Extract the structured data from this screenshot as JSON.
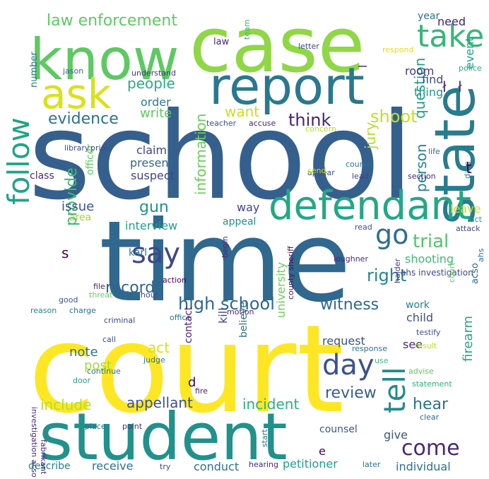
{
  "words": [
    {
      "text": "school",
      "color": "#35608d"
    },
    {
      "text": "court",
      "color": "#fde725"
    },
    {
      "text": "time",
      "color": "#31688e"
    },
    {
      "text": "case",
      "color": "#8fd744"
    },
    {
      "text": "student",
      "color": "#21918c"
    },
    {
      "text": "know",
      "color": "#5ec962"
    },
    {
      "text": "report",
      "color": "#2a788e"
    },
    {
      "text": "state",
      "color": "#287c8e"
    },
    {
      "text": "ask",
      "color": "#d8e219"
    },
    {
      "text": "defendant",
      "color": "#22a884"
    },
    {
      "text": "follow",
      "color": "#20a486"
    },
    {
      "text": "say",
      "color": "#404688"
    },
    {
      "text": "day",
      "color": "#3b528b"
    },
    {
      "text": "take",
      "color": "#35b779"
    },
    {
      "text": "tell",
      "color": "#228c8d"
    },
    {
      "text": "come",
      "color": "#482878"
    },
    {
      "text": "law enforcement",
      "color": "#5ec962"
    },
    {
      "text": "evidence",
      "color": "#2c728e"
    },
    {
      "text": "go",
      "color": "#2d708e"
    },
    {
      "text": "high school",
      "color": "#31688e"
    },
    {
      "text": "people",
      "color": "#27ad81"
    },
    {
      "text": "shoot",
      "color": "#c2df23"
    },
    {
      "text": "think",
      "color": "#482475"
    },
    {
      "text": "want",
      "color": "#c8e020"
    },
    {
      "text": "trial",
      "color": "#52c569"
    },
    {
      "text": "right",
      "color": "#25848e"
    },
    {
      "text": "witness",
      "color": "#31688e"
    },
    {
      "text": "information",
      "color": "#6ccd5a"
    },
    {
      "text": "question",
      "color": "#1fa188"
    },
    {
      "text": "person",
      "color": "#25848e"
    },
    {
      "text": "jury",
      "color": "#b5de2b"
    },
    {
      "text": "provide",
      "color": "#3dbc74"
    },
    {
      "text": "record",
      "color": "#33638d"
    },
    {
      "text": "gun",
      "color": "#20928c"
    },
    {
      "text": "write",
      "color": "#5ec962"
    },
    {
      "text": "review",
      "color": "#355f8d"
    },
    {
      "text": "incident",
      "color": "#2ab07f"
    },
    {
      "text": "appellant",
      "color": "#3b528b"
    },
    {
      "text": "include",
      "color": "#b5de2b"
    },
    {
      "text": "hear",
      "color": "#2c728e"
    },
    {
      "text": "firearm",
      "color": "#22a884"
    },
    {
      "text": "university",
      "color": "#6ccd5a"
    },
    {
      "text": "act",
      "color": "#d8e219"
    },
    {
      "text": "post",
      "color": "#9fda3a"
    },
    {
      "text": "note",
      "color": "#2d708e"
    },
    {
      "text": "issue",
      "color": "#3b528b"
    },
    {
      "text": "interview",
      "color": "#1fa188"
    },
    {
      "text": "claim",
      "color": "#404688"
    },
    {
      "text": "present",
      "color": "#31688e"
    },
    {
      "text": "suspect",
      "color": "#414487"
    },
    {
      "text": "order",
      "color": "#287c8e"
    },
    {
      "text": "find",
      "color": "#3e4a89"
    },
    {
      "text": "room",
      "color": "#453781"
    },
    {
      "text": "thing",
      "color": "#1e9b8a"
    },
    {
      "text": "need",
      "color": "#482173"
    },
    {
      "text": "year",
      "color": "#2c728e"
    },
    {
      "text": "event",
      "color": "#1fa188"
    },
    {
      "text": "shooting",
      "color": "#3dbc74"
    },
    {
      "text": "karl",
      "color": "#2a788e"
    },
    {
      "text": "area",
      "color": "#9fda3a"
    },
    {
      "text": "way",
      "color": "#414487"
    },
    {
      "text": "appeal",
      "color": "#21918c"
    },
    {
      "text": "leave",
      "color": "#c8e020"
    },
    {
      "text": "officer",
      "color": "#5ec962"
    },
    {
      "text": "class",
      "color": "#472d7b"
    },
    {
      "text": "work",
      "color": "#26828e"
    },
    {
      "text": "child",
      "color": "#3b528b"
    },
    {
      "text": "see",
      "color": "#482878"
    },
    {
      "text": "request",
      "color": "#3b528b"
    },
    {
      "text": "contact",
      "color": "#481f70"
    },
    {
      "text": "believe",
      "color": "#2c728e"
    },
    {
      "text": "kill",
      "color": "#404688"
    },
    {
      "text": "give",
      "color": "#3b528b"
    },
    {
      "text": "conduct",
      "color": "#2c728e"
    },
    {
      "text": "petitioner",
      "color": "#1f9e89"
    },
    {
      "text": "receive",
      "color": "#2c728e"
    },
    {
      "text": "individual",
      "color": "#2c728e"
    },
    {
      "text": "describe",
      "color": "#287c8e"
    },
    {
      "text": "counsel",
      "color": "#39568c"
    },
    {
      "text": "number",
      "color": "#2a788e"
    },
    {
      "text": "law",
      "color": "#482878"
    },
    {
      "text": "acso",
      "color": "#2f6c8e"
    },
    {
      "text": "ahs",
      "color": "#2c728e"
    },
    {
      "text": "ahs investigation",
      "color": "#3e4a89"
    },
    {
      "text": "court",
      "color": "#5ec962"
    },
    {
      "text": "course",
      "color": "#2c728e"
    },
    {
      "text": "lead",
      "color": "#414487"
    },
    {
      "text": "section",
      "color": "#482878"
    },
    {
      "text": "appear",
      "color": "#3b528b"
    },
    {
      "text": "send",
      "color": "#c8e020"
    },
    {
      "text": "life",
      "color": "#31688e"
    },
    {
      "text": "date",
      "color": "#26828e"
    },
    {
      "text": "prior",
      "color": "#3e4a89"
    },
    {
      "text": "library",
      "color": "#3e4a89"
    },
    {
      "text": "teacher",
      "color": "#3e4a89"
    },
    {
      "text": "accuse",
      "color": "#482475"
    },
    {
      "text": "concern",
      "color": "#b5de2b"
    },
    {
      "text": "understand",
      "color": "#453781"
    },
    {
      "text": "jason",
      "color": "#31688e"
    },
    {
      "text": "team",
      "color": "#35b779"
    },
    {
      "text": "letter",
      "color": "#404688"
    },
    {
      "text": "respond",
      "color": "#d8e219"
    },
    {
      "text": "police",
      "color": "#27ad81"
    },
    {
      "text": "fact",
      "color": "#1e9b8a"
    },
    {
      "text": "attack",
      "color": "#404688"
    },
    {
      "text": "read",
      "color": "#3b528b"
    },
    {
      "text": "begin",
      "color": "#482878"
    },
    {
      "text": "loughner",
      "color": "#482878"
    },
    {
      "text": "county sheriff",
      "color": "#471063"
    },
    {
      "text": "action",
      "color": "#440154"
    },
    {
      "text": "file",
      "color": "#481f70"
    },
    {
      "text": "threat",
      "color": "#6ccd5a"
    },
    {
      "text": "hour",
      "color": "#3e4a89"
    },
    {
      "text": "office",
      "color": "#2c728e"
    },
    {
      "text": "motion",
      "color": "#482878"
    },
    {
      "text": "halder",
      "color": "#453781"
    },
    {
      "text": "testify",
      "color": "#3b528b"
    },
    {
      "text": "response",
      "color": "#2c728e"
    },
    {
      "text": "result",
      "color": "#b5de2b"
    },
    {
      "text": "advise",
      "color": "#5ec962"
    },
    {
      "text": "statement",
      "color": "#2ab07f"
    },
    {
      "text": "use",
      "color": "#3dbc74"
    },
    {
      "text": "good",
      "color": "#3b528b"
    },
    {
      "text": "reason",
      "color": "#25848e"
    },
    {
      "text": "charge",
      "color": "#2c728e"
    },
    {
      "text": "criminal",
      "color": "#3e4a89"
    },
    {
      "text": "call",
      "color": "#3e4a89"
    },
    {
      "text": "judge",
      "color": "#2a788e"
    },
    {
      "text": "door",
      "color": "#1f9e89"
    },
    {
      "text": "continue",
      "color": "#2c728e"
    },
    {
      "text": "fire",
      "color": "#481f70"
    },
    {
      "text": "place",
      "color": "#2c728e"
    },
    {
      "text": "point",
      "color": "#472d7b"
    },
    {
      "text": "start",
      "color": "#2c728e"
    },
    {
      "text": "clear",
      "color": "#31688e"
    },
    {
      "text": "hearing",
      "color": "#482878"
    },
    {
      "text": "try",
      "color": "#3e4a89"
    },
    {
      "text": "later",
      "color": "#2c728e"
    },
    {
      "text": "investigation acso",
      "color": "#482878"
    },
    {
      "text": "fabrikant",
      "color": "#481f70"
    },
    {
      "text": "e",
      "color": "#440154"
    },
    {
      "text": "t",
      "color": "#440154"
    },
    {
      "text": "s",
      "color": "#440154"
    },
    {
      "text": "d",
      "color": "#440154"
    },
    {
      "text": "ł",
      "color": "#482878"
    },
    {
      "text": "ł",
      "color": "#482878"
    },
    {
      "text": "l",
      "color": "#482878"
    }
  ]
}
